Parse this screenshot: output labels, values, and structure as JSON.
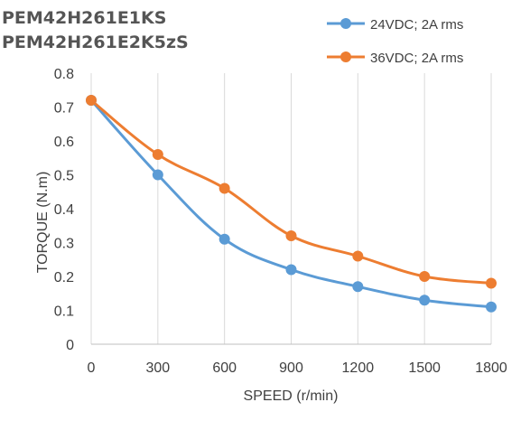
{
  "chart_data": {
    "type": "line",
    "title_lines": [
      "PEM42H261E1KS",
      "PEM42H261E2K5zS"
    ],
    "xlabel": "SPEED (r/min)",
    "ylabel": "TORQUE (N.m)",
    "x": [
      0,
      300,
      600,
      900,
      1200,
      1500,
      1800
    ],
    "xlim": [
      0,
      1800
    ],
    "ylim": [
      0,
      0.8
    ],
    "x_ticks": [
      "0",
      "300",
      "600",
      "900",
      "1200",
      "1500",
      "1800"
    ],
    "y_ticks": [
      "0",
      "0.1",
      "0.2",
      "0.3",
      "0.4",
      "0.5",
      "0.6",
      "0.7",
      "0.8"
    ],
    "grid": "vertical",
    "legend_position": "top-right",
    "series": [
      {
        "name": "24VDC; 2A rms",
        "color": "#5B9BD5",
        "values": [
          0.72,
          0.5,
          0.31,
          0.22,
          0.17,
          0.13,
          0.11
        ]
      },
      {
        "name": "36VDC; 2A rms",
        "color": "#ED7D31",
        "values": [
          0.72,
          0.56,
          0.46,
          0.32,
          0.26,
          0.2,
          0.18
        ]
      }
    ]
  }
}
